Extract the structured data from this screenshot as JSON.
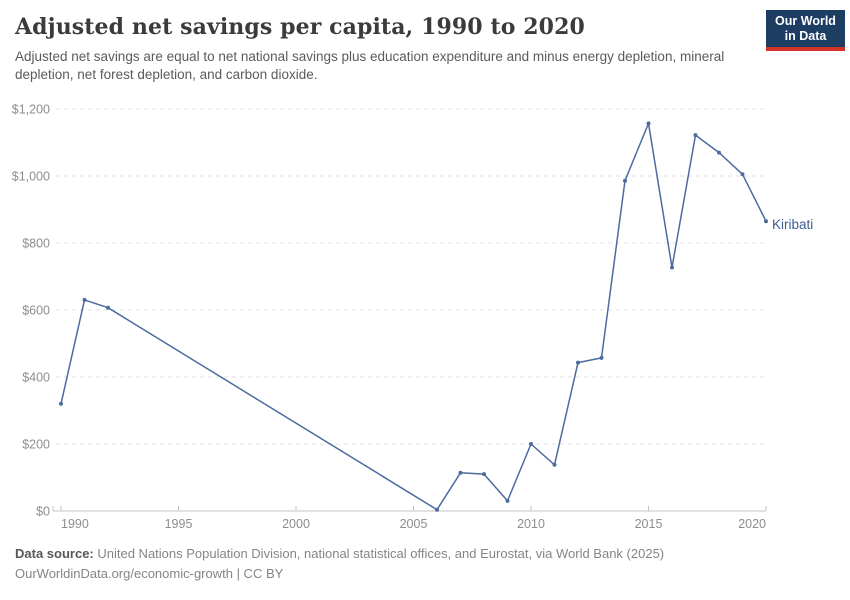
{
  "header": {
    "title": "Adjusted net savings per capita, 1990 to 2020",
    "subtitle": "Adjusted net savings are equal to net national savings plus education expenditure and minus energy depletion, mineral depletion, net forest depletion, and carbon dioxide.",
    "logo_line1": "Our World",
    "logo_line2": "in Data",
    "logo_bg_color": "#1d3d63",
    "logo_accent_color": "#d13328"
  },
  "chart_data": {
    "type": "line",
    "title": "Adjusted net savings per capita, 1990 to 2020",
    "xlabel": "",
    "ylabel": "",
    "xlim": [
      1990,
      2020
    ],
    "ylim": [
      0,
      1200
    ],
    "grid": "horizontal-dashed",
    "x_ticks": [
      1990,
      1995,
      2000,
      2005,
      2010,
      2015,
      2020
    ],
    "y_ticks": [
      0,
      200,
      400,
      600,
      800,
      1000,
      1200
    ],
    "y_tick_labels": [
      "$0",
      "$200",
      "$400",
      "$600",
      "$800",
      "$1,000",
      "$1,200"
    ],
    "note": "no data between 1992 and 2006; straight interpolated segment",
    "series": [
      {
        "name": "Kiribati",
        "color": "#4c6b9e",
        "label_color": "#3d5c94",
        "points": [
          [
            1990,
            320
          ],
          [
            1991,
            630
          ],
          [
            1992,
            607
          ],
          [
            2006,
            4
          ],
          [
            2007,
            114
          ],
          [
            2008,
            110
          ],
          [
            2009,
            30
          ],
          [
            2010,
            200
          ],
          [
            2011,
            138
          ],
          [
            2012,
            443
          ],
          [
            2013,
            457
          ],
          [
            2014,
            986
          ],
          [
            2015,
            1157
          ],
          [
            2016,
            727
          ],
          [
            2017,
            1122
          ],
          [
            2018,
            1070
          ],
          [
            2019,
            1005
          ],
          [
            2020,
            865
          ]
        ]
      }
    ],
    "axis_color": "#c4c4c4",
    "gridline_color": "#e2e2e2"
  },
  "footer": {
    "data_source_label": "Data source:",
    "data_source_text": " United Nations Population Division, national statistical offices, and Eurostat, via World Bank (2025)",
    "attribution": "OurWorldinData.org/economic-growth | CC BY"
  }
}
